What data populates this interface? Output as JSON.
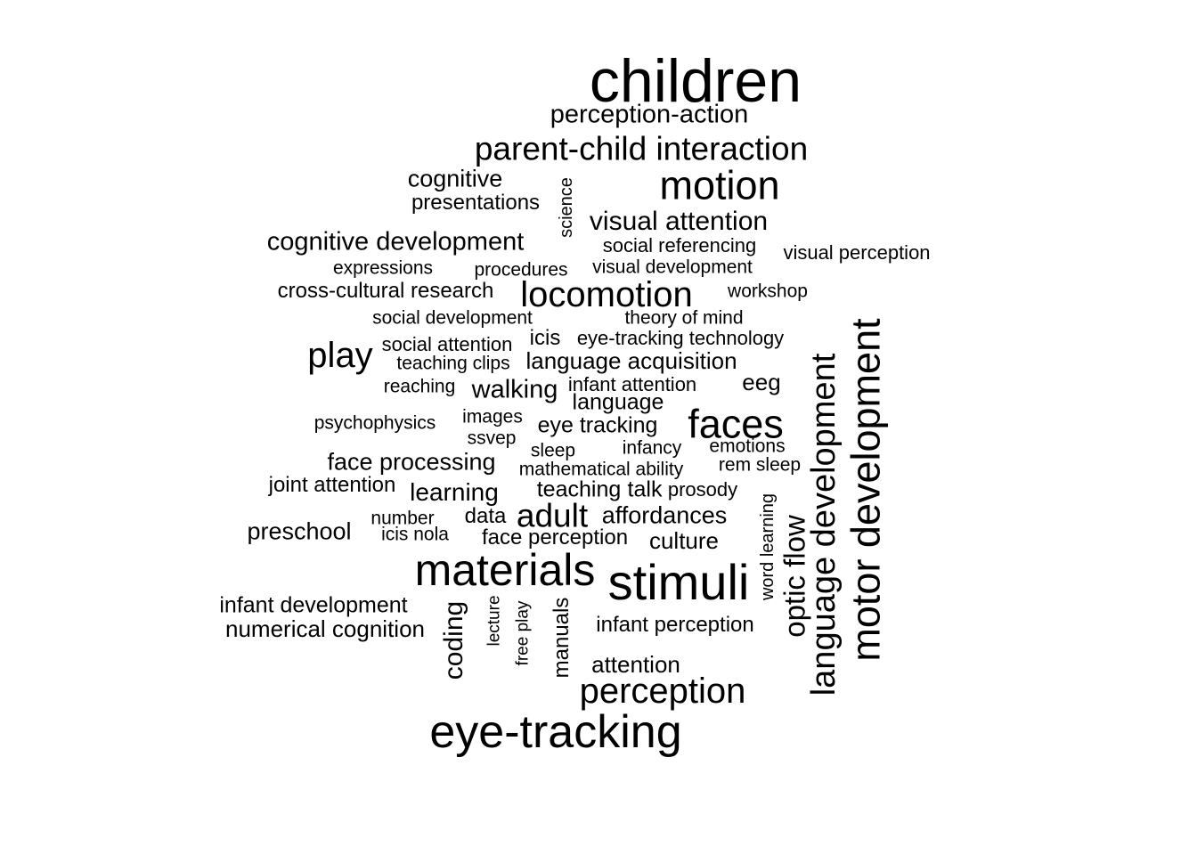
{
  "word_cloud": {
    "words": [
      {
        "text": "children",
        "weight": 10
      },
      {
        "text": "perception-action",
        "weight": 3
      },
      {
        "text": "parent-child interaction",
        "weight": 5
      },
      {
        "text": "cognitive",
        "weight": 3
      },
      {
        "text": "presentations",
        "weight": 2
      },
      {
        "text": "science",
        "weight": 1
      },
      {
        "text": "motion",
        "weight": 6
      },
      {
        "text": "visual attention",
        "weight": 4
      },
      {
        "text": "cognitive development",
        "weight": 4
      },
      {
        "text": "social referencing",
        "weight": 2
      },
      {
        "text": "visual perception",
        "weight": 2
      },
      {
        "text": "expressions",
        "weight": 2
      },
      {
        "text": "procedures",
        "weight": 2
      },
      {
        "text": "visual development",
        "weight": 2
      },
      {
        "text": "cross-cultural research",
        "weight": 3
      },
      {
        "text": "locomotion",
        "weight": 6
      },
      {
        "text": "workshop",
        "weight": 2
      },
      {
        "text": "social development",
        "weight": 2
      },
      {
        "text": "theory of mind",
        "weight": 2
      },
      {
        "text": "play",
        "weight": 6
      },
      {
        "text": "social attention",
        "weight": 2
      },
      {
        "text": "icis",
        "weight": 2
      },
      {
        "text": "eye-tracking technology",
        "weight": 2
      },
      {
        "text": "teaching clips",
        "weight": 2
      },
      {
        "text": "language acquisition",
        "weight": 3
      },
      {
        "text": "language development",
        "weight": 6
      },
      {
        "text": "motor development",
        "weight": 7
      },
      {
        "text": "reaching",
        "weight": 2
      },
      {
        "text": "walking",
        "weight": 3
      },
      {
        "text": "infant attention",
        "weight": 2
      },
      {
        "text": "eeg",
        "weight": 3
      },
      {
        "text": "language",
        "weight": 3
      },
      {
        "text": "psychophysics",
        "weight": 2
      },
      {
        "text": "images",
        "weight": 2
      },
      {
        "text": "eye tracking",
        "weight": 3
      },
      {
        "text": "faces",
        "weight": 7
      },
      {
        "text": "ssvep",
        "weight": 2
      },
      {
        "text": "sleep",
        "weight": 2
      },
      {
        "text": "infancy",
        "weight": 2
      },
      {
        "text": "emotions",
        "weight": 2
      },
      {
        "text": "face processing",
        "weight": 3
      },
      {
        "text": "mathematical ability",
        "weight": 2
      },
      {
        "text": "rem sleep",
        "weight": 2
      },
      {
        "text": "joint attention",
        "weight": 2
      },
      {
        "text": "learning",
        "weight": 3
      },
      {
        "text": "teaching",
        "weight": 3
      },
      {
        "text": "talk",
        "weight": 3
      },
      {
        "text": "prosody",
        "weight": 2
      },
      {
        "text": "word learning",
        "weight": 1
      },
      {
        "text": "optic flow",
        "weight": 5
      },
      {
        "text": "number",
        "weight": 2
      },
      {
        "text": "data",
        "weight": 2
      },
      {
        "text": "adult",
        "weight": 5
      },
      {
        "text": "affordances",
        "weight": 3
      },
      {
        "text": "preschool",
        "weight": 3
      },
      {
        "text": "icis nola",
        "weight": 2
      },
      {
        "text": "face perception",
        "weight": 3
      },
      {
        "text": "culture",
        "weight": 3
      },
      {
        "text": "materials",
        "weight": 8
      },
      {
        "text": "stimuli",
        "weight": 9
      },
      {
        "text": "infant development",
        "weight": 3
      },
      {
        "text": "lecture",
        "weight": 1
      },
      {
        "text": "free play",
        "weight": 1
      },
      {
        "text": "manuals",
        "weight": 2
      },
      {
        "text": "coding",
        "weight": 3
      },
      {
        "text": "numerical cognition",
        "weight": 3
      },
      {
        "text": "infant perception",
        "weight": 3
      },
      {
        "text": "attention",
        "weight": 3
      },
      {
        "text": "perception",
        "weight": 6
      },
      {
        "text": "eye-tracking",
        "weight": 8
      }
    ]
  }
}
